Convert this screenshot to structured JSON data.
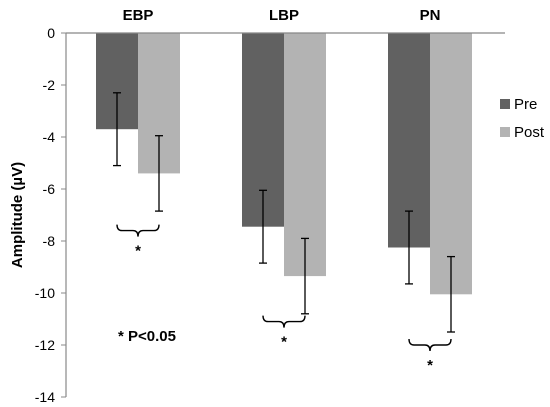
{
  "chart_data": {
    "type": "bar",
    "categories": [
      "EBP",
      "LBP",
      "PN"
    ],
    "series": [
      {
        "name": "Pre",
        "color": "#616161",
        "values": [
          -3.7,
          -7.45,
          -8.25
        ],
        "errors": [
          1.4,
          1.4,
          1.4
        ]
      },
      {
        "name": "Post",
        "color": "#b3b3b3",
        "values": [
          -5.4,
          -9.35,
          -10.05
        ],
        "errors": [
          1.45,
          1.45,
          1.45
        ]
      }
    ],
    "title": "",
    "xlabel": "",
    "ylabel": "Amplitude (µV)",
    "ylim": [
      -14,
      0
    ],
    "yticks": [
      0,
      -2,
      -4,
      -6,
      -8,
      -10,
      -12,
      -14
    ],
    "ytick_labels": [
      "0",
      "-2",
      "-4",
      "-6",
      "-8",
      "-10",
      "-12",
      "-14"
    ],
    "x_axis_position": "top",
    "grid": false,
    "legend": {
      "position": "right",
      "entries": [
        "Pre",
        "Post"
      ]
    },
    "significance": {
      "marker": "*",
      "comparisons": [
        {
          "category": "EBP",
          "y": -7.6
        },
        {
          "category": "LBP",
          "y": -11.1
        },
        {
          "category": "PN",
          "y": -12.0
        }
      ]
    },
    "annotation": "* P<0.05"
  }
}
